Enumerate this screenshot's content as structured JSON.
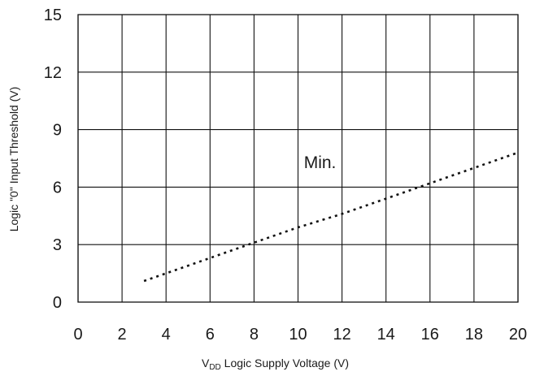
{
  "chart_data": {
    "type": "line",
    "xlabel": {
      "main": "V",
      "subscript": "DD",
      "rest": " Logic Supply Voltage (V)"
    },
    "ylabel": "Logic \"0\" Input Threshold (V)",
    "xlim": [
      0,
      20
    ],
    "ylim": [
      0,
      15
    ],
    "x_ticks": [
      0,
      2,
      4,
      6,
      8,
      10,
      12,
      14,
      16,
      18,
      20
    ],
    "y_ticks": [
      0,
      3,
      6,
      9,
      12,
      15
    ],
    "x_tick_labels": [
      "0",
      "2",
      "4",
      "6",
      "8",
      "10",
      "12",
      "14",
      "16",
      "18",
      "20"
    ],
    "y_tick_labels": [
      "0",
      "3",
      "6",
      "9",
      "12",
      "15"
    ],
    "grid": true,
    "series": [
      {
        "name": "Min.",
        "style": "dotted",
        "color": "#111111",
        "x": [
          3,
          4,
          6,
          8,
          10,
          12,
          14,
          16,
          18,
          20
        ],
        "y": [
          1.1,
          1.5,
          2.3,
          3.1,
          3.9,
          4.6,
          5.4,
          6.2,
          7.0,
          7.8
        ]
      }
    ],
    "annotations": [
      {
        "text": "Min.",
        "x": 11,
        "y": 7.0
      }
    ]
  }
}
